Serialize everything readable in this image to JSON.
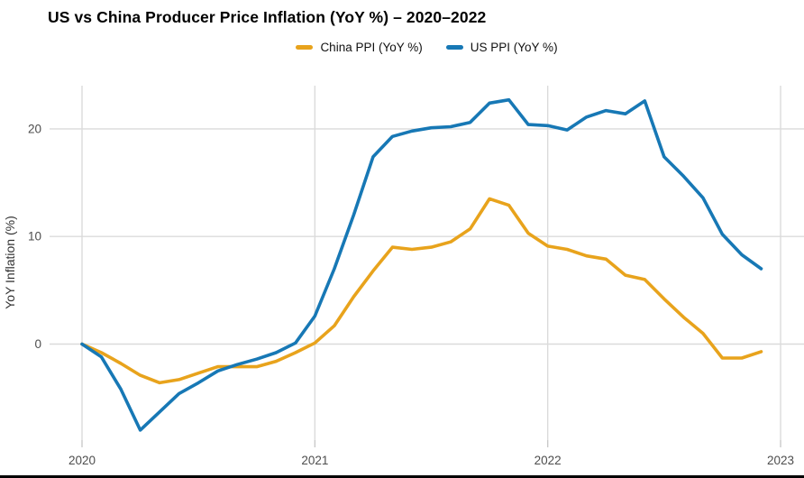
{
  "title": "US vs China Producer Price Inflation (YoY %) – 2020–2022",
  "legend": {
    "items": [
      {
        "label": "China PPI (YoY %)",
        "color": "#E8A31C"
      },
      {
        "label": "US PPI (YoY %)",
        "color": "#1778B5"
      }
    ]
  },
  "chart_data": {
    "type": "line",
    "title": "US vs China Producer Price Inflation (YoY %) – 2020–2022",
    "xlabel": "",
    "ylabel": "YoY Inflation (%)",
    "x": [
      "2020-01",
      "2020-02",
      "2020-03",
      "2020-04",
      "2020-05",
      "2020-06",
      "2020-07",
      "2020-08",
      "2020-09",
      "2020-10",
      "2020-11",
      "2020-12",
      "2021-01",
      "2021-02",
      "2021-03",
      "2021-04",
      "2021-05",
      "2021-06",
      "2021-07",
      "2021-08",
      "2021-09",
      "2021-10",
      "2021-11",
      "2021-12",
      "2022-01",
      "2022-02",
      "2022-03",
      "2022-04",
      "2022-05",
      "2022-06",
      "2022-07",
      "2022-08",
      "2022-09",
      "2022-10",
      "2022-11",
      "2022-12"
    ],
    "series": [
      {
        "name": "China PPI (YoY %)",
        "color": "#E8A31C",
        "values": [
          0.0,
          -0.8,
          -1.8,
          -2.9,
          -3.6,
          -3.3,
          -2.7,
          -2.1,
          -2.1,
          -2.1,
          -1.6,
          -0.8,
          0.1,
          1.7,
          4.4,
          6.8,
          9.0,
          8.8,
          9.0,
          9.5,
          10.7,
          13.5,
          12.9,
          10.3,
          9.1,
          8.8,
          8.2,
          7.9,
          6.4,
          6.0,
          4.2,
          2.5,
          1.0,
          -1.3,
          -1.3,
          -0.7
        ]
      },
      {
        "name": "US PPI (YoY %)",
        "color": "#1778B5",
        "values": [
          0.0,
          -1.2,
          -4.2,
          -8.0,
          -6.3,
          -4.6,
          -3.6,
          -2.5,
          -1.9,
          -1.4,
          -0.8,
          0.1,
          2.6,
          7.0,
          12.0,
          17.4,
          19.3,
          19.8,
          20.1,
          20.2,
          20.6,
          22.4,
          22.7,
          20.4,
          20.3,
          19.9,
          21.1,
          21.7,
          21.4,
          22.6,
          17.4,
          15.6,
          13.6,
          10.2,
          8.3,
          7.0
        ]
      }
    ],
    "x_ticks": [
      "2020",
      "2021",
      "2022",
      "2023"
    ],
    "y_ticks": [
      0,
      10,
      20
    ],
    "ylim": [
      -9.3,
      24.5
    ],
    "grid": true,
    "legend_position": "top-center",
    "grid_color": "#DBDBDB",
    "tick_color": "#C9C9C9",
    "axis_text_color": "#4d4d4d"
  }
}
